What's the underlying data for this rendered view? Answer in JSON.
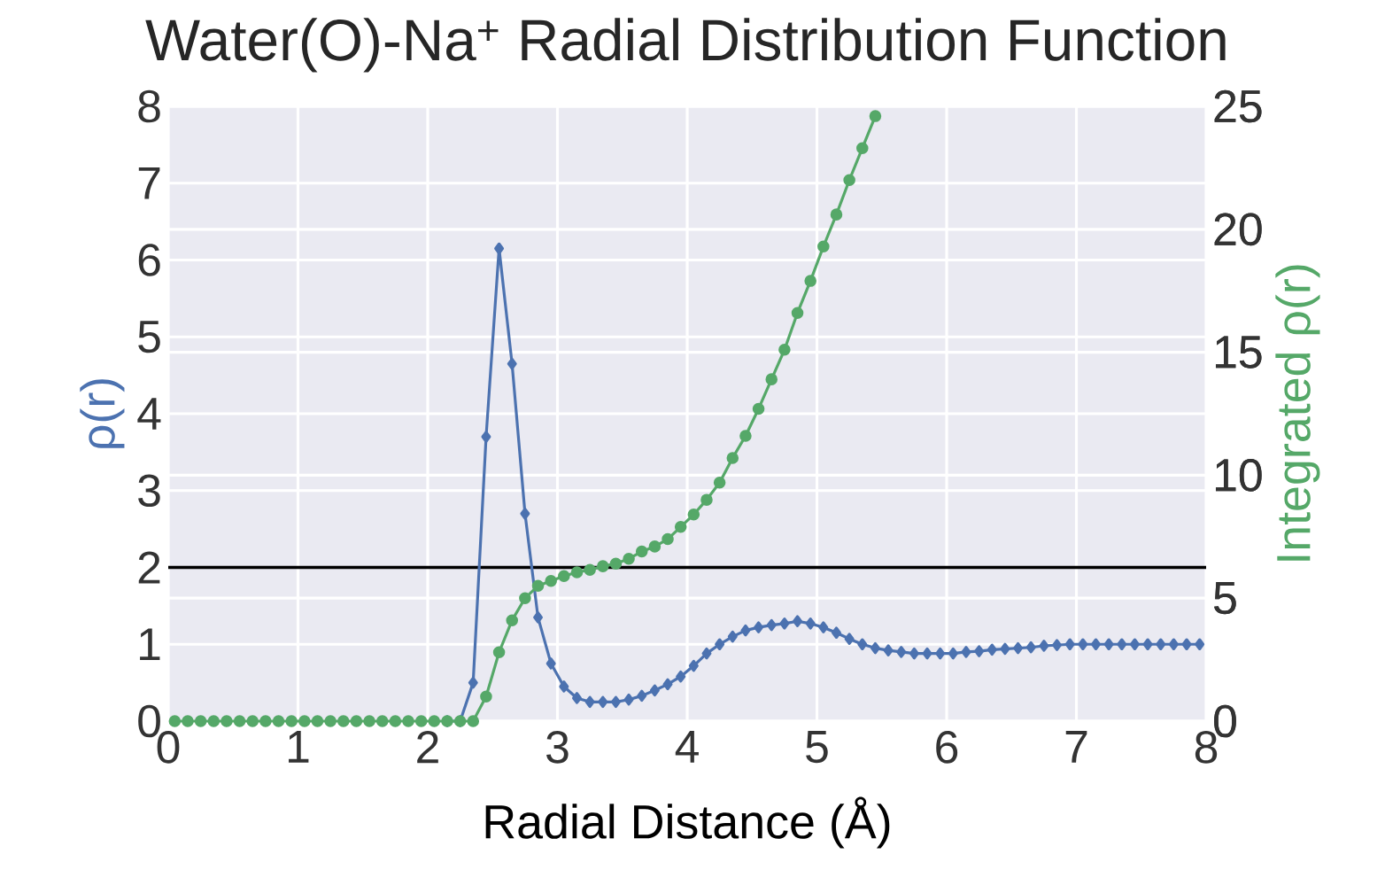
{
  "chart_data": {
    "type": "line",
    "title": "Water(O)-Na$^{+}$ Radial Distribution Function",
    "xlabel": "Radial Distance (Å)",
    "ylabel": "ρ(r)",
    "y2label": "Integrated ρ(r)",
    "xlim": [
      0,
      8
    ],
    "ylim": [
      0,
      8
    ],
    "y2lim": [
      0,
      25
    ],
    "xticks": [
      0,
      1,
      2,
      3,
      4,
      5,
      6,
      7,
      8
    ],
    "yticks": [
      0,
      1,
      2,
      3,
      4,
      5,
      6,
      7,
      8
    ],
    "y2ticks": [
      0,
      5,
      10,
      15,
      20,
      25
    ],
    "grid": true,
    "ref_lines": [
      {
        "axis": "y",
        "value": 2,
        "color": "#000000"
      }
    ],
    "series": [
      {
        "color": "#4c72b0",
        "marker": "diamond",
        "x": [
          2.15,
          2.25,
          2.35,
          2.45,
          2.55,
          2.65,
          2.75,
          2.85,
          2.95,
          3.05,
          3.15,
          3.25,
          3.35,
          3.45,
          3.55,
          3.65,
          3.75,
          3.85,
          3.95,
          4.05,
          4.15,
          4.25,
          4.35,
          4.45,
          4.55,
          4.65,
          4.75,
          4.85,
          4.95,
          5.05,
          5.15,
          5.25,
          5.35,
          5.45,
          5.55,
          5.65,
          5.75,
          5.85,
          5.95,
          6.05,
          6.15,
          6.25,
          6.35,
          6.45,
          6.55,
          6.65,
          6.75,
          6.85,
          6.95,
          7.05,
          7.15,
          7.25,
          7.35,
          7.45,
          7.55,
          7.65,
          7.75,
          7.85,
          7.95
        ],
        "values": [
          0,
          0,
          0.5,
          3.7,
          6.15,
          4.65,
          2.7,
          1.35,
          0.75,
          0.45,
          0.3,
          0.25,
          0.25,
          0.25,
          0.28,
          0.33,
          0.4,
          0.48,
          0.58,
          0.72,
          0.88,
          1.0,
          1.1,
          1.18,
          1.22,
          1.25,
          1.27,
          1.3,
          1.27,
          1.22,
          1.15,
          1.07,
          1.0,
          0.95,
          0.92,
          0.9,
          0.88,
          0.88,
          0.88,
          0.88,
          0.9,
          0.91,
          0.93,
          0.94,
          0.95,
          0.96,
          0.98,
          0.99,
          1.0,
          1.0,
          1.0,
          1.0,
          1.0,
          1.0,
          1.0,
          1.0,
          1.0,
          1.0,
          1.0
        ]
      },
      {
        "color": "#55a868",
        "marker": "circle",
        "axis": "y2",
        "x": [
          0.05,
          0.15,
          0.25,
          0.35,
          0.45,
          0.55,
          0.65,
          0.75,
          0.85,
          0.95,
          1.05,
          1.15,
          1.25,
          1.35,
          1.45,
          1.55,
          1.65,
          1.75,
          1.85,
          1.95,
          2.05,
          2.15,
          2.25,
          2.35,
          2.45,
          2.55,
          2.65,
          2.75,
          2.85,
          2.95,
          3.05,
          3.15,
          3.25,
          3.35,
          3.45,
          3.55,
          3.65,
          3.75,
          3.85,
          3.95,
          4.05,
          4.15,
          4.25,
          4.35,
          4.45,
          4.55,
          4.65,
          4.75,
          4.85,
          4.95,
          5.05,
          5.15,
          5.25,
          5.35,
          5.45
        ],
        "values": [
          0,
          0,
          0,
          0,
          0,
          0,
          0,
          0,
          0,
          0,
          0,
          0,
          0,
          0,
          0,
          0,
          0,
          0,
          0,
          0,
          0,
          0,
          0,
          0,
          1.0,
          2.8,
          4.1,
          5.0,
          5.5,
          5.7,
          5.9,
          6.05,
          6.15,
          6.3,
          6.4,
          6.6,
          6.9,
          7.1,
          7.4,
          7.9,
          8.4,
          9.0,
          9.7,
          10.7,
          11.6,
          12.7,
          13.9,
          15.1,
          16.6,
          17.9,
          19.3,
          20.6,
          22.0,
          23.3,
          24.6
        ]
      }
    ]
  }
}
